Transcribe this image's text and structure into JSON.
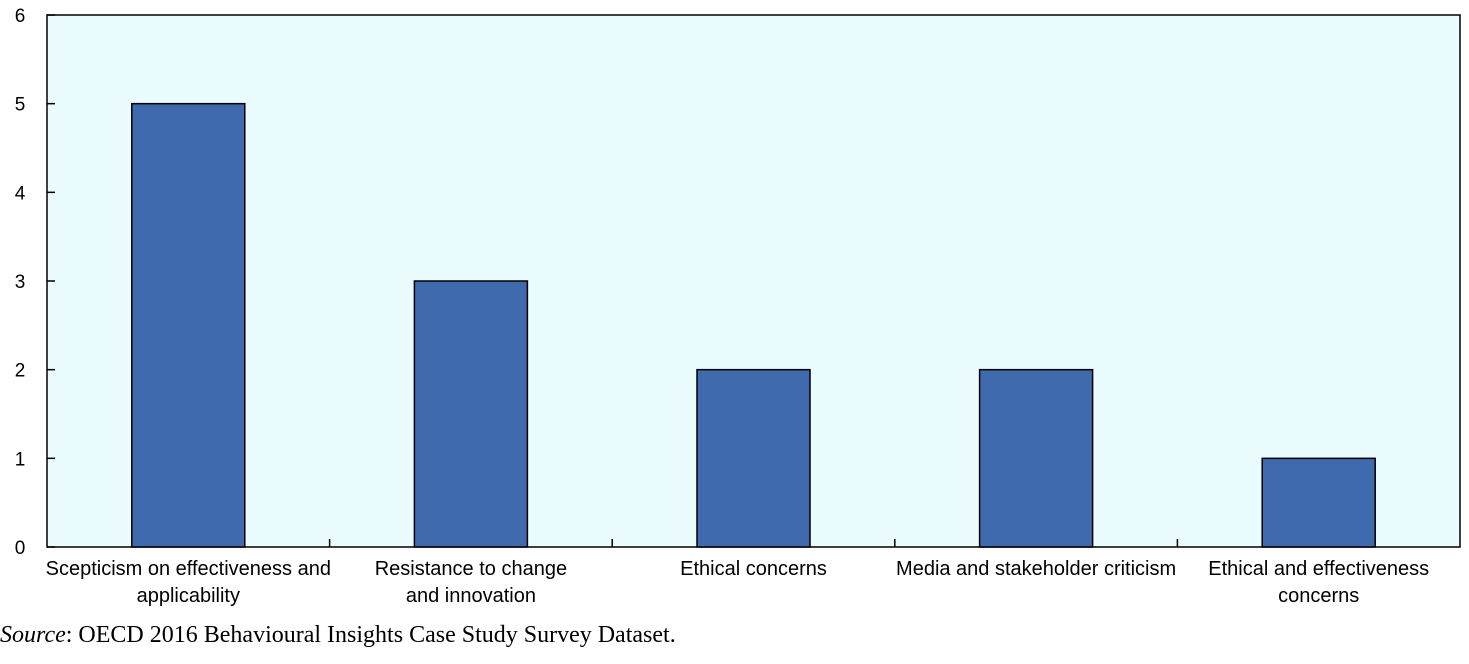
{
  "chart_data": {
    "type": "bar",
    "categories": [
      [
        "Scepticism on effectiveness and",
        "applicability"
      ],
      [
        "Resistance to change",
        "and innovation"
      ],
      [
        "Ethical concerns"
      ],
      [
        "Media and stakeholder criticism"
      ],
      [
        "Ethical and effectiveness",
        "concerns"
      ]
    ],
    "values": [
      5,
      3,
      2,
      2,
      1
    ],
    "ylim": [
      0,
      6
    ],
    "yticks": [
      "0",
      "1",
      "2",
      "3",
      "4",
      "5",
      "6"
    ],
    "title": "",
    "xlabel": "",
    "ylabel": "",
    "grid": false,
    "colors": {
      "bar_fill": "#3f6aad",
      "bar_stroke": "#000000",
      "plot_bg": "#eafcfd"
    }
  },
  "source": {
    "label": "Source",
    "text": ": OECD 2016 Behavioural Insights Case Study Survey Dataset."
  }
}
